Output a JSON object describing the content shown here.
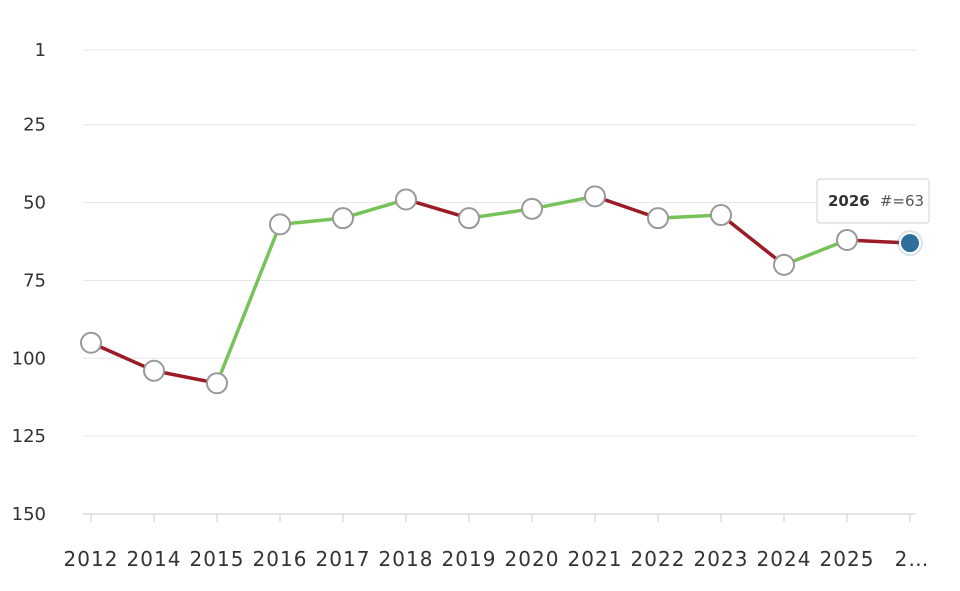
{
  "chart_data": {
    "type": "line",
    "title": "",
    "xlabel": "",
    "ylabel": "",
    "y_inverted": true,
    "ylim": [
      1,
      150
    ],
    "y_ticks": [
      "1",
      "25",
      "50",
      "75",
      "100",
      "125",
      "150"
    ],
    "x_tick_labels": [
      "2012",
      "2014",
      "2015",
      "2016",
      "2017",
      "2018",
      "2019",
      "2020",
      "2021",
      "2022",
      "2023",
      "2024",
      "2025",
      "2…"
    ],
    "x": [
      "2012",
      "2014",
      "2015",
      "2016",
      "2017",
      "2018",
      "2019",
      "2020",
      "2021",
      "2022",
      "2023",
      "2024",
      "2025",
      "2026"
    ],
    "series": [
      {
        "values": [
          95,
          104,
          108,
          57,
          55,
          49,
          55,
          52,
          48,
          55,
          54,
          70,
          62,
          63
        ]
      }
    ],
    "grid": true,
    "colors": {
      "improved": "#77c35a",
      "declined": "#9b1c24",
      "highlight_point": "#2e6f9e",
      "marker_stroke": "#999999",
      "gridline": "#e6e6e6"
    },
    "highlight_index": 13,
    "tooltip": {
      "year": "2026",
      "value_text": "#=63"
    }
  }
}
